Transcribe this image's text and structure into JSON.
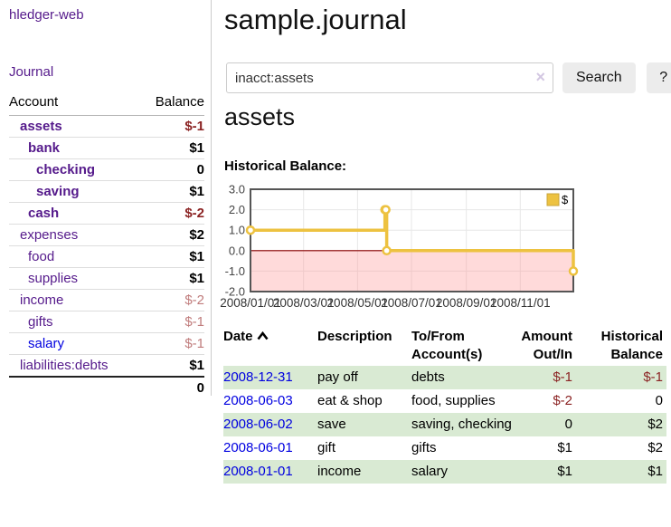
{
  "brand": "hledger-web",
  "nav": {
    "journal": "Journal"
  },
  "colors": {
    "purple": "#551a8b",
    "blue": "#0000e0",
    "negStrong": "#8b2323",
    "negSoft": "#c07c7c",
    "rowGreen": "#d9ead3",
    "btnBg": "#ececec"
  },
  "sidebar": {
    "header": {
      "account": "Account",
      "balance": "Balance"
    },
    "rows": [
      {
        "name": "assets",
        "balance": "$-1",
        "indent": 1,
        "emph": true,
        "name_style": "purple",
        "bal_style": "negs"
      },
      {
        "name": "bank",
        "balance": "$1",
        "indent": 2,
        "emph": true,
        "name_style": "purple",
        "bal_style": "black"
      },
      {
        "name": "checking",
        "balance": "0",
        "indent": 3,
        "emph": true,
        "name_style": "purple",
        "bal_style": "black"
      },
      {
        "name": "saving",
        "balance": "$1",
        "indent": 3,
        "emph": true,
        "name_style": "purple",
        "bal_style": "black"
      },
      {
        "name": "cash",
        "balance": "$-2",
        "indent": 2,
        "emph": true,
        "name_style": "purple",
        "bal_style": "negs"
      },
      {
        "name": "expenses",
        "balance": "$2",
        "indent": 1,
        "emph": false,
        "name_style": "purple",
        "bal_style": "black"
      },
      {
        "name": "food",
        "balance": "$1",
        "indent": 2,
        "emph": false,
        "name_style": "purple",
        "bal_style": "black"
      },
      {
        "name": "supplies",
        "balance": "$1",
        "indent": 2,
        "emph": false,
        "name_style": "purple",
        "bal_style": "black"
      },
      {
        "name": "income",
        "balance": "$-2",
        "indent": 1,
        "emph": false,
        "name_style": "purple",
        "bal_style": "soft"
      },
      {
        "name": "gifts",
        "balance": "$-1",
        "indent": 2,
        "emph": false,
        "name_style": "purple",
        "bal_style": "soft"
      },
      {
        "name": "salary",
        "balance": "$-1",
        "indent": 2,
        "emph": false,
        "name_style": "blue",
        "bal_style": "soft"
      },
      {
        "name": "liabilities:debts",
        "balance": "$1",
        "indent": 1,
        "emph": false,
        "name_style": "purple",
        "bal_style": "black"
      }
    ],
    "total": "0"
  },
  "header": {
    "title": "sample.journal"
  },
  "search": {
    "value": "inacct:assets",
    "clear": "×",
    "button": "Search",
    "help": "?"
  },
  "account_page": {
    "heading": "assets",
    "chart_title": "Historical Balance:"
  },
  "chart_data": {
    "type": "line",
    "title": "Historical Balance",
    "legend": [
      {
        "label": "$",
        "color": "#edc240"
      }
    ],
    "legend_position": "top-right",
    "x_ticks": [
      "2008/01/01",
      "2008/03/01",
      "2008/05/01",
      "2008/07/01",
      "2008/09/01",
      "2008/11/01"
    ],
    "y_ticks": [
      3.0,
      2.0,
      1.0,
      0.0,
      -1.0,
      -2.0
    ],
    "ylim": [
      -2,
      3
    ],
    "xlim": [
      "2008-01-01",
      "2008-12-31"
    ],
    "grid": true,
    "series": [
      {
        "name": "$",
        "color": "#edc240",
        "steps": true,
        "points": [
          [
            "2008-01-01",
            1
          ],
          [
            "2008-06-01",
            2
          ],
          [
            "2008-06-02",
            2
          ],
          [
            "2008-06-03",
            0
          ],
          [
            "2008-12-31",
            -1
          ]
        ]
      }
    ],
    "negative_region_fill": "rgba(255,150,150,0.35)",
    "zero_line_color": "#8b0000",
    "border_color": "#555555",
    "gridline_color": "#e7e7e7"
  },
  "register": {
    "headers": {
      "date": "Date",
      "sort_icon": "chevron-up",
      "description": "Description",
      "accounts": "To/From Account(s)",
      "amount": "Amount Out/In",
      "balance": "Historical Balance"
    },
    "rows": [
      {
        "date": "2008-12-31",
        "description": "pay off",
        "accounts": "debts",
        "amount": "$-1",
        "balance": "$-1",
        "amount_neg": true,
        "balance_neg": true
      },
      {
        "date": "2008-06-03",
        "description": "eat & shop",
        "accounts": "food, supplies",
        "amount": "$-2",
        "balance": "0",
        "amount_neg": true,
        "balance_neg": false
      },
      {
        "date": "2008-06-02",
        "description": "save",
        "accounts": "saving, checking",
        "amount": "0",
        "balance": "$2",
        "amount_neg": false,
        "balance_neg": false
      },
      {
        "date": "2008-06-01",
        "description": "gift",
        "accounts": "gifts",
        "amount": "$1",
        "balance": "$2",
        "amount_neg": false,
        "balance_neg": false
      },
      {
        "date": "2008-01-01",
        "description": "income",
        "accounts": "salary",
        "amount": "$1",
        "balance": "$1",
        "amount_neg": false,
        "balance_neg": false
      }
    ]
  }
}
